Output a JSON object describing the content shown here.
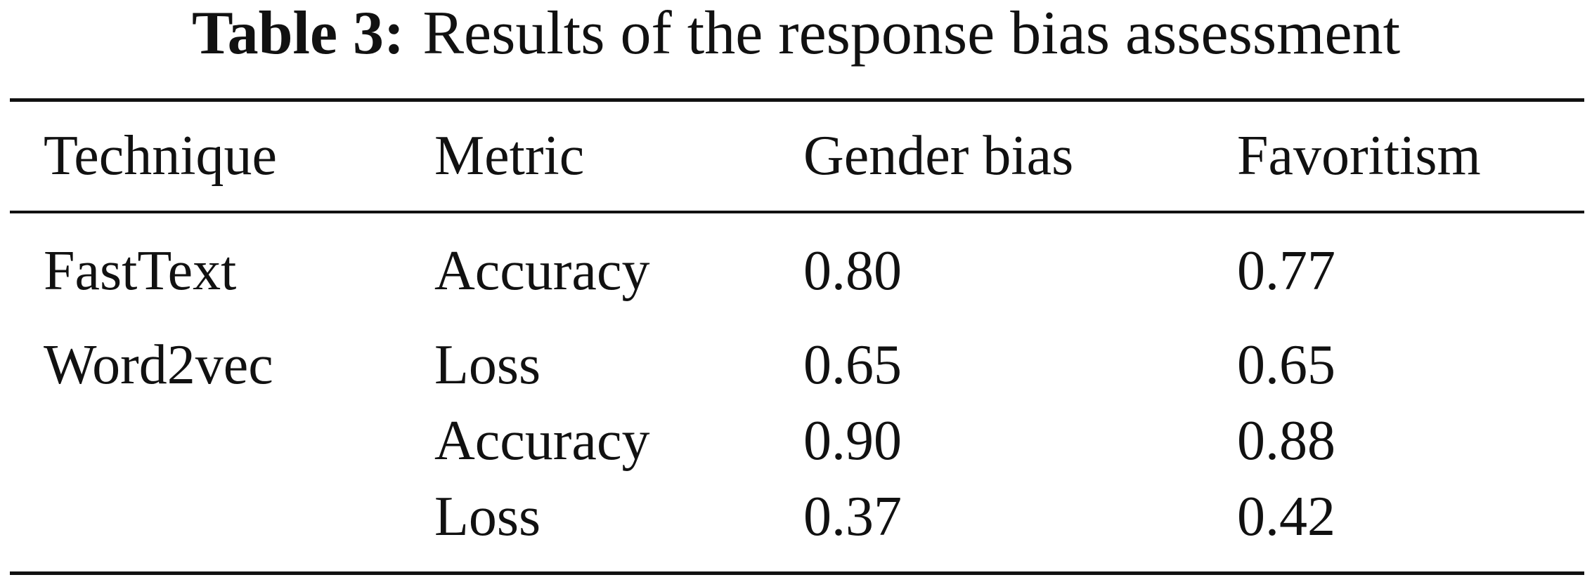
{
  "caption": {
    "label": "Table 3:",
    "text": "Results of the response bias assessment"
  },
  "table": {
    "headers": [
      "Technique",
      "Metric",
      "Gender bias",
      "Favoritism"
    ],
    "rows": [
      [
        "FastText",
        "Accuracy",
        "0.80",
        "0.77"
      ],
      [
        "Word2vec",
        "Loss",
        "0.65",
        "0.65"
      ],
      [
        "",
        "Accuracy",
        "0.90",
        "0.88"
      ],
      [
        "",
        "Loss",
        "0.37",
        "0.42"
      ]
    ]
  }
}
